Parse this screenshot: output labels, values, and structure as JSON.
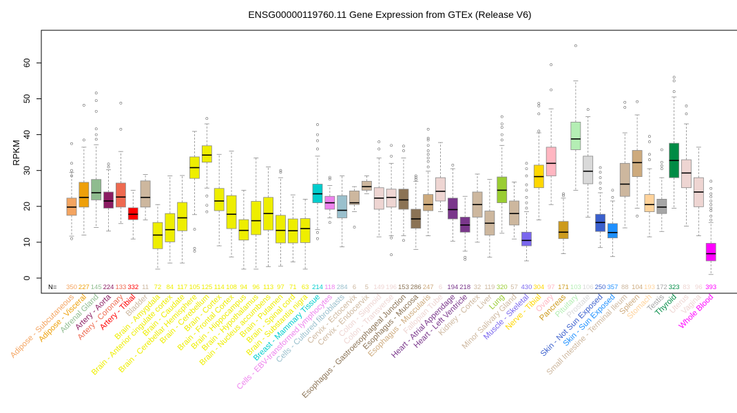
{
  "chart_data": {
    "type": "boxplot",
    "title": "ENSG00000119760.11 Gene Expression from GTEx (Release V6)",
    "ylabel": "RPKM",
    "xlabel": "",
    "ylim": [
      -3,
      68
    ],
    "yticks": [
      0,
      10,
      20,
      30,
      40,
      50,
      60
    ],
    "n_prefix": "N=",
    "categories": [
      {
        "name": "Adipose - Subcutaneous",
        "color": "#f4a460",
        "n": "350",
        "q1": 17.5,
        "median": 19.8,
        "q3": 22.3,
        "lo": 11.7,
        "hi": 29.5,
        "out": [
          11,
          28.5,
          30,
          32,
          37.5
        ]
      },
      {
        "name": "Adipose - Visceral",
        "color": "#eea00a",
        "n": "227",
        "q1": 19.8,
        "median": 22.5,
        "q3": 26.7,
        "lo": 12,
        "hi": 36.5,
        "out": [
          38.5,
          48.2
        ]
      },
      {
        "name": "Adrenal Gland",
        "color": "#8fbc8f",
        "n": "145",
        "q1": 21.8,
        "median": 23.8,
        "q3": 27.5,
        "lo": 14.1,
        "hi": 37.2,
        "out": [
          38.7,
          40,
          41.6,
          46.5,
          49.5,
          51.6
        ]
      },
      {
        "name": "Artery - Aorta",
        "color": "#8b1c62",
        "n": "224",
        "q1": 19.5,
        "median": 21.5,
        "q3": 24,
        "lo": 13.1,
        "hi": 30.2,
        "out": [
          31,
          31.8
        ]
      },
      {
        "name": "Artery - Coronary",
        "color": "#ee6a50",
        "n": "133",
        "q1": 19.8,
        "median": 22.6,
        "q3": 26.5,
        "lo": 15.2,
        "hi": 35.3,
        "out": [
          41.5,
          48.8
        ]
      },
      {
        "name": "Artery - Tibial",
        "color": "#ff0000",
        "n": "332",
        "q1": 16.3,
        "median": 17.8,
        "q3": 19.6,
        "lo": 10.9,
        "hi": 24.5,
        "out": []
      },
      {
        "name": "Bladder",
        "color": "#cdb79e",
        "n": "11",
        "q1": 19.8,
        "median": 22.5,
        "q3": 27.1,
        "lo": 16.2,
        "hi": 28.9,
        "out": []
      },
      {
        "name": "Brain - Amygdala",
        "color": "#eeee00",
        "n": "72",
        "q1": 8.2,
        "median": 12,
        "q3": 15.5,
        "lo": 2.5,
        "hi": 20.5,
        "out": []
      },
      {
        "name": "Brain - Anterior cingulate cortex",
        "color": "#eeee00",
        "n": "84",
        "q1": 10.1,
        "median": 13.5,
        "q3": 18,
        "lo": 4.2,
        "hi": 28.5,
        "out": []
      },
      {
        "name": "Brain - Caudate",
        "color": "#eeee00",
        "n": "117",
        "q1": 13.2,
        "median": 16.8,
        "q3": 21.1,
        "lo": 4.2,
        "hi": 28.6,
        "out": []
      },
      {
        "name": "Brain - Cerebellar Hemisphere",
        "color": "#eeee00",
        "n": "105",
        "q1": 27.8,
        "median": 30.8,
        "q3": 33.8,
        "lo": 17.7,
        "hi": 40.9,
        "out": [
          7.5,
          8.3,
          13.6
        ]
      },
      {
        "name": "Brain - Cerebellum",
        "color": "#eeee00",
        "n": "125",
        "q1": 32.3,
        "median": 34.3,
        "q3": 36.9,
        "lo": 25.1,
        "hi": 43,
        "out": [
          18.5,
          20.3,
          22.9,
          44.5
        ]
      },
      {
        "name": "Brain - Cortex",
        "color": "#eeee00",
        "n": "114",
        "q1": 18.8,
        "median": 21.5,
        "q3": 25,
        "lo": 9,
        "hi": 34.5,
        "out": []
      },
      {
        "name": "Brain - Frontal Cortex",
        "color": "#eeee00",
        "n": "108",
        "q1": 13.8,
        "median": 17.8,
        "q3": 23,
        "lo": 5.9,
        "hi": 35.4,
        "out": []
      },
      {
        "name": "Brain - Hippocampus",
        "color": "#eeee00",
        "n": "94",
        "q1": 10.6,
        "median": 13.3,
        "q3": 16.3,
        "lo": 2.5,
        "hi": 24.5,
        "out": []
      },
      {
        "name": "Brain - Hypothalamus",
        "color": "#eeee00",
        "n": "96",
        "q1": 12.1,
        "median": 16,
        "q3": 21.4,
        "lo": 2.5,
        "hi": 33.5,
        "out": []
      },
      {
        "name": "Brain - Nucleus accumbens",
        "color": "#eeee00",
        "n": "113",
        "q1": 13.4,
        "median": 18,
        "q3": 22.5,
        "lo": 3.2,
        "hi": 31,
        "out": []
      },
      {
        "name": "Brain - Putamen",
        "color": "#eeee00",
        "n": "97",
        "q1": 9.8,
        "median": 13.3,
        "q3": 17.5,
        "lo": 3.3,
        "hi": 28,
        "out": [
          29.5,
          30
        ]
      },
      {
        "name": "Brain - Spinal cord",
        "color": "#eeee00",
        "n": "71",
        "q1": 9.8,
        "median": 13.2,
        "q3": 16.5,
        "lo": 4.5,
        "hi": 23.2,
        "out": []
      },
      {
        "name": "Brain - Substantia nigra",
        "color": "#eeee00",
        "n": "63",
        "q1": 9.9,
        "median": 13.8,
        "q3": 16.6,
        "lo": 2.5,
        "hi": 22,
        "out": []
      },
      {
        "name": "Breast - Mammary Tissue",
        "color": "#00cdcd",
        "n": "214",
        "q1": 21,
        "median": 23.5,
        "q3": 26.2,
        "lo": 13.5,
        "hi": 34,
        "out": [
          11,
          12.7,
          36,
          38.3,
          40,
          42.8
        ]
      },
      {
        "name": "Cells - EBV-transformed lymphocytes",
        "color": "#ee82ee",
        "n": "118",
        "q1": 19.2,
        "median": 21,
        "q3": 22.8,
        "lo": 16.8,
        "hi": 25.8,
        "out": [
          15.5,
          27.6,
          28.1
        ]
      },
      {
        "name": "Cells - Cultured fibroblasts",
        "color": "#9ac0cd",
        "n": "284",
        "q1": 16.8,
        "median": 18.9,
        "q3": 23,
        "lo": 8.7,
        "hi": 28.5,
        "out": []
      },
      {
        "name": "Cervix - Ectocervix",
        "color": "#cdb79e",
        "n": "6",
        "q1": 20.5,
        "median": 21,
        "q3": 24.3,
        "lo": 18.5,
        "hi": 25.5,
        "out": [
          14.2
        ]
      },
      {
        "name": "Cervix - Endocervix",
        "color": "#cdb79e",
        "n": "5",
        "q1": 24.5,
        "median": 25.5,
        "q3": 27,
        "lo": 23.5,
        "hi": 28.5,
        "out": []
      },
      {
        "name": "Colon - Sigmoid",
        "color": "#eed5d2",
        "n": "149",
        "q1": 19.2,
        "median": 22.3,
        "q3": 25.2,
        "lo": 11.5,
        "hi": 33.5,
        "out": [
          36,
          38
        ]
      },
      {
        "name": "Colon - Transverse",
        "color": "#eed5d2",
        "n": "196",
        "q1": 19.8,
        "median": 22.5,
        "q3": 24.8,
        "lo": 11.8,
        "hi": 32,
        "out": [
          6.5,
          11.2,
          34,
          37
        ]
      },
      {
        "name": "Esophagus - Gastroesophageal Junction",
        "color": "#8b7355",
        "n": "153",
        "q1": 19.2,
        "median": 21.8,
        "q3": 24.8,
        "lo": 11.8,
        "hi": 33.5,
        "out": [
          10.5,
          35.5,
          36.8
        ]
      },
      {
        "name": "Esophagus - Mucosa",
        "color": "#8b7355",
        "n": "286",
        "q1": 13.9,
        "median": 16.5,
        "q3": 19.2,
        "lo": 8,
        "hi": 27,
        "out": [
          27.5,
          28,
          28.5
        ]
      },
      {
        "name": "Esophagus - Muscularis",
        "color": "#cdaa7d",
        "n": "247",
        "q1": 18.8,
        "median": 20.5,
        "q3": 23.3,
        "lo": 11.8,
        "hi": 29.8,
        "out": [
          31,
          32.5,
          33.5,
          34.5,
          35.5,
          37,
          38.5,
          39,
          41.5
        ]
      },
      {
        "name": "Fallopian Tube",
        "color": "#eed5d2",
        "n": "6",
        "q1": 21.5,
        "median": 24.2,
        "q3": 28,
        "lo": 18.5,
        "hi": 37.8,
        "out": []
      },
      {
        "name": "Heart - Atrial Appendage",
        "color": "#7a378b",
        "n": "194",
        "q1": 16.5,
        "median": 19.1,
        "q3": 22.3,
        "lo": 10.3,
        "hi": 30.5,
        "out": [
          31.5
        ]
      },
      {
        "name": "Heart - Left Ventricle",
        "color": "#7a378b",
        "n": "218",
        "q1": 12.8,
        "median": 14.8,
        "q3": 17,
        "lo": 7.5,
        "hi": 22.8,
        "out": [
          5.2,
          5.8
        ]
      },
      {
        "name": "Kidney - Cortex",
        "color": "#cdb79e",
        "n": "32",
        "q1": 17,
        "median": 20.5,
        "q3": 24,
        "lo": 10,
        "hi": 29,
        "out": []
      },
      {
        "name": "Liver",
        "color": "#cdb79e",
        "n": "119",
        "q1": 12,
        "median": 15.3,
        "q3": 18.7,
        "lo": 5.8,
        "hi": 27.5,
        "out": []
      },
      {
        "name": "Lung",
        "color": "#9acd32",
        "n": "320",
        "q1": 21,
        "median": 24.5,
        "q3": 28.2,
        "lo": 12.5,
        "hi": 37,
        "out": [
          38.5,
          40,
          42,
          43,
          45
        ]
      },
      {
        "name": "Minor Salivary Gland",
        "color": "#cdb79e",
        "n": "57",
        "q1": 14.8,
        "median": 18,
        "q3": 21.5,
        "lo": 10.9,
        "hi": 26.8,
        "out": []
      },
      {
        "name": "Muscle - Skeletal",
        "color": "#7a67ee",
        "n": "430",
        "q1": 9,
        "median": 10.5,
        "q3": 12.8,
        "lo": 4.8,
        "hi": 18.5,
        "out": [
          19.5,
          21,
          22.5,
          24.5,
          26,
          28.5,
          30.5,
          32
        ]
      },
      {
        "name": "Nerve - Tibial",
        "color": "#ffd700",
        "n": "304",
        "q1": 25.2,
        "median": 28.3,
        "q3": 31.5,
        "lo": 16.2,
        "hi": 40.5,
        "out": [
          41,
          45.8,
          48,
          48.7
        ]
      },
      {
        "name": "Ovary",
        "color": "#ffb6c1",
        "n": "97",
        "q1": 28.5,
        "median": 32,
        "q3": 36.5,
        "lo": 20.5,
        "hi": 47.2,
        "out": [
          52.5,
          59.5
        ]
      },
      {
        "name": "Pancreas",
        "color": "#cd9b1d",
        "n": "171",
        "q1": 11,
        "median": 12.8,
        "q3": 15.8,
        "lo": 6.8,
        "hi": 22.3,
        "out": [
          23,
          23.5
        ]
      },
      {
        "name": "Pituitary",
        "color": "#b4eeb4",
        "n": "103",
        "q1": 35.8,
        "median": 38.8,
        "q3": 43.5,
        "lo": 24.5,
        "hi": 55,
        "out": [
          64.8
        ]
      },
      {
        "name": "Prostate",
        "color": "#d9d9d9",
        "n": "106",
        "q1": 26.3,
        "median": 29.8,
        "q3": 34,
        "lo": 17,
        "hi": 45,
        "out": [
          47
        ]
      },
      {
        "name": "Skin - Not Sun Exposed",
        "color": "#3a5fcd",
        "n": "250",
        "q1": 13,
        "median": 15.5,
        "q3": 17.8,
        "lo": 8.5,
        "hi": 23.8,
        "out": [
          25,
          26.5,
          28,
          29.5,
          30.8
        ]
      },
      {
        "name": "Skin - Sun Exposed",
        "color": "#1e90ff",
        "n": "357",
        "q1": 11.2,
        "median": 12.7,
        "q3": 15.2,
        "lo": 6,
        "hi": 21.5,
        "out": [
          22.5,
          24.5
        ]
      },
      {
        "name": "Small Intestine - Terminal Ileum",
        "color": "#cdb79e",
        "n": "88",
        "q1": 22.8,
        "median": 26.2,
        "q3": 32,
        "lo": 14,
        "hi": 40.5,
        "out": [
          47.6,
          49
        ]
      },
      {
        "name": "Spleen",
        "color": "#cdaa7d",
        "n": "104",
        "q1": 28.3,
        "median": 32.2,
        "q3": 35.6,
        "lo": 19.5,
        "hi": 45.5,
        "out": [
          17.3,
          49.2
        ]
      },
      {
        "name": "Stomach",
        "color": "#ffd39b",
        "n": "193",
        "q1": 18.5,
        "median": 20.5,
        "q3": 23.3,
        "lo": 11.5,
        "hi": 30.5,
        "out": [
          33,
          34.5,
          38,
          39.5
        ]
      },
      {
        "name": "Testis",
        "color": "#a6a6a6",
        "n": "172",
        "q1": 18,
        "median": 19.8,
        "q3": 22,
        "lo": 13,
        "hi": 28,
        "out": [
          30.5,
          31.3,
          32.3,
          35.8
        ]
      },
      {
        "name": "Thyroid",
        "color": "#008b45",
        "n": "323",
        "q1": 28,
        "median": 32.8,
        "q3": 37.6,
        "lo": 19.5,
        "hi": 50.5,
        "out": [
          52,
          55,
          56
        ]
      },
      {
        "name": "Uterus",
        "color": "#eed5d2",
        "n": "83",
        "q1": 25.2,
        "median": 29.3,
        "q3": 33,
        "lo": 14.5,
        "hi": 43,
        "out": [
          45.8,
          48
        ]
      },
      {
        "name": "Vagina",
        "color": "#eed5d2",
        "n": "96",
        "q1": 19.9,
        "median": 24,
        "q3": 28,
        "lo": 11.8,
        "hi": 36.5,
        "out": []
      },
      {
        "name": "Whole Blood",
        "color": "#ff00ff",
        "n": "393",
        "q1": 4.8,
        "median": 6.8,
        "q3": 9.7,
        "lo": 1,
        "hi": 15.5,
        "out": [
          16.2,
          17.3,
          18.8,
          19.5,
          20.5,
          21.5,
          22.7,
          23.5,
          25,
          27
        ]
      }
    ]
  }
}
